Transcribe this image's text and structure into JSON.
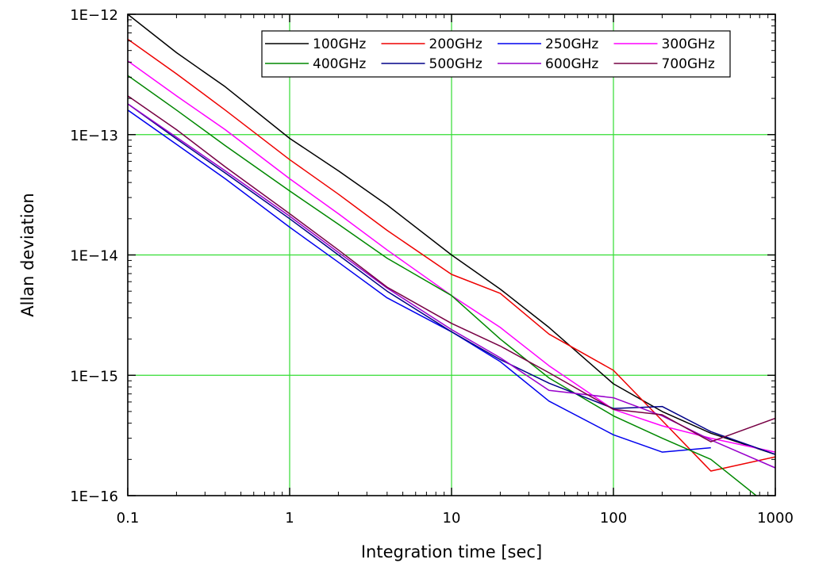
{
  "chart_data": {
    "type": "line",
    "xlabel": "Integration time [sec]",
    "ylabel": "Allan deviation",
    "xscale": "log",
    "yscale": "log",
    "xlim": [
      0.1,
      1000
    ],
    "ylim": [
      1e-16,
      1e-12
    ],
    "x_ticks": [
      {
        "value": 0.1,
        "label": "0.1"
      },
      {
        "value": 1,
        "label": "1"
      },
      {
        "value": 10,
        "label": "10"
      },
      {
        "value": 100,
        "label": "100"
      },
      {
        "value": 1000,
        "label": "1000"
      }
    ],
    "y_ticks": [
      {
        "value": 1e-12,
        "label": "1E−12"
      },
      {
        "value": 1e-13,
        "label": "1E−13"
      },
      {
        "value": 1e-14,
        "label": "1E−14"
      },
      {
        "value": 1e-15,
        "label": "1E−15"
      },
      {
        "value": 1e-16,
        "label": "1E−16"
      }
    ],
    "grid": true,
    "grid_color": "#33dd33",
    "legend_position": "top-right",
    "series": [
      {
        "name": "100GHz",
        "color": "#000000",
        "x": [
          0.1,
          0.2,
          0.4,
          1,
          2,
          4,
          10,
          20,
          40,
          100,
          200,
          400,
          1000
        ],
        "y": [
          1e-12,
          4.8e-13,
          2.5e-13,
          9.3e-14,
          5e-14,
          2.6e-14,
          1e-14,
          5.2e-15,
          2.5e-15,
          8.5e-16,
          5e-16,
          3.3e-16,
          2.2e-16
        ]
      },
      {
        "name": "200GHz",
        "color": "#ee0000",
        "x": [
          0.1,
          0.2,
          0.4,
          1,
          2,
          4,
          10,
          20,
          40,
          100,
          200,
          400,
          1000
        ],
        "y": [
          6.2e-13,
          3.2e-13,
          1.6e-13,
          6.2e-14,
          3.2e-14,
          1.6e-14,
          6.9e-15,
          4.8e-15,
          2.2e-15,
          1.1e-15,
          4.2e-16,
          1.6e-16,
          2.1e-16
        ]
      },
      {
        "name": "250GHz",
        "color": "#0000ee",
        "x": [
          0.1,
          0.2,
          0.4,
          1,
          2,
          4,
          10,
          20,
          40,
          100,
          200,
          400
        ],
        "y": [
          1.6e-13,
          8.3e-14,
          4.3e-14,
          1.7e-14,
          8.7e-15,
          4.4e-15,
          2.3e-15,
          1.3e-15,
          6.1e-16,
          3.2e-16,
          2.3e-16,
          2.5e-16
        ]
      },
      {
        "name": "300GHz",
        "color": "#ff00ff",
        "x": [
          0.1,
          0.2,
          0.4,
          1,
          2,
          4,
          10,
          20,
          40,
          100,
          200,
          400,
          1000
        ],
        "y": [
          4.1e-13,
          2.1e-13,
          1.1e-13,
          4.3e-14,
          2.2e-14,
          1.1e-14,
          4.6e-15,
          2.5e-15,
          1.2e-15,
          5.2e-16,
          3.8e-16,
          3e-16,
          2.3e-16
        ]
      },
      {
        "name": "400GHz",
        "color": "#008800",
        "x": [
          0.1,
          0.2,
          0.4,
          1,
          2,
          4,
          10,
          20,
          40,
          100,
          200,
          400,
          800
        ],
        "y": [
          3.1e-13,
          1.6e-13,
          8.1e-14,
          3.4e-14,
          1.8e-14,
          9.4e-15,
          4.6e-15,
          2e-15,
          9.5e-16,
          4.6e-16,
          3e-16,
          2e-16,
          9.5e-17
        ]
      },
      {
        "name": "500GHz",
        "color": "#000088",
        "x": [
          0.1,
          0.2,
          0.4,
          1,
          2,
          4,
          10,
          20,
          40,
          100,
          200,
          400,
          1000
        ],
        "y": [
          1.8e-13,
          9.2e-14,
          4.8e-14,
          2e-14,
          1e-14,
          5e-15,
          2.3e-15,
          1.35e-15,
          8.6e-16,
          5.3e-16,
          5.5e-16,
          3.4e-16,
          2.2e-16
        ]
      },
      {
        "name": "600GHz",
        "color": "#9900cc",
        "x": [
          0.1,
          0.2,
          0.4,
          1,
          2,
          4,
          10,
          20,
          40,
          100,
          200,
          400,
          1000
        ],
        "y": [
          1.8e-13,
          9.5e-14,
          5e-14,
          2.1e-14,
          1.05e-14,
          5.3e-15,
          2.4e-15,
          1.4e-15,
          7.5e-16,
          6.5e-16,
          4.6e-16,
          2.9e-16,
          1.7e-16
        ]
      },
      {
        "name": "700GHz",
        "color": "#770044",
        "x": [
          0.1,
          0.2,
          0.4,
          1,
          2,
          4,
          10,
          20,
          40,
          100,
          200,
          400,
          1000
        ],
        "y": [
          2.1e-13,
          1.1e-13,
          5.4e-14,
          2.2e-14,
          1.1e-14,
          5.4e-15,
          2.7e-15,
          1.75e-15,
          1.05e-15,
          5.2e-16,
          4.7e-16,
          2.8e-16,
          4.4e-16
        ]
      }
    ]
  }
}
